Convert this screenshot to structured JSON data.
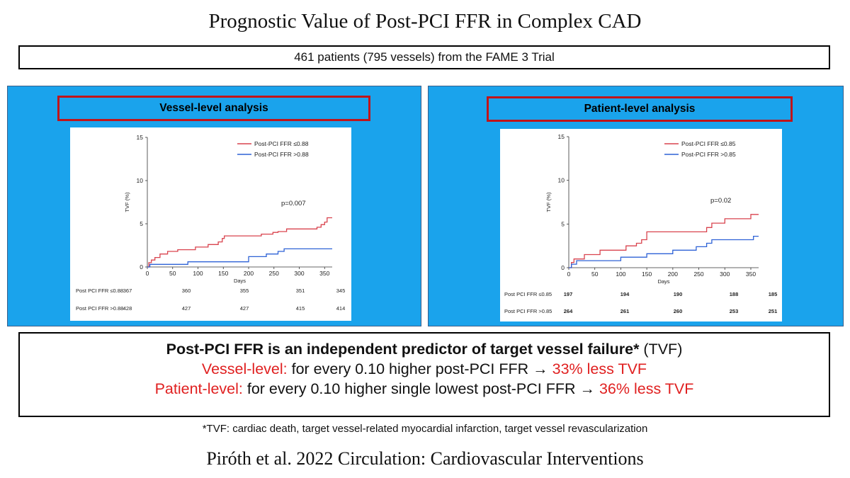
{
  "slide": {
    "title": "Prognostic Value of Post-PCI FFR in Complex CAD",
    "subtitle": "461 patients (795 vessels) from the FAME 3 Trial"
  },
  "panels": [
    {
      "label": "Vessel-level analysis"
    },
    {
      "label": "Patient-level analysis"
    }
  ],
  "summary": {
    "headline_bold": "Post-PCI FFR is an independent predictor of target vessel failure*",
    "headline_rest": " (TVF)",
    "line2_label": "Vessel-level:",
    "line2_mid": " for every 0.10 higher post-PCI FFR → ",
    "line2_result": "33% less TVF",
    "line3_label": "Patient-level:",
    "line3_mid": " for every 0.10 higher single lowest post-PCI FFR → ",
    "line3_result": "36% less TVF"
  },
  "footnote": "*TVF: cardiac death, target vessel-related myocardial infarction, target vessel revascularization",
  "citation": "Piróth et al. 2022 Circulation: Cardiovascular Interventions",
  "colors": {
    "low_ffr": "#d9434e",
    "high_ffr": "#2e62d6",
    "panel_bg": "#1aa3ec",
    "highlight_red": "#e02020"
  },
  "chart_data": [
    {
      "type": "line",
      "step": true,
      "xlabel": "Days",
      "ylabel": "TVF (%)",
      "xlim": [
        0,
        365
      ],
      "ylim": [
        0,
        15
      ],
      "xticks": [
        0,
        50,
        100,
        150,
        200,
        250,
        300,
        350
      ],
      "yticks": [
        0,
        5,
        10,
        15
      ],
      "annotation": "p=0.007",
      "legend_position": "top-right",
      "series": [
        {
          "name": "Post-PCI FFR ≤0.88",
          "color": "#d9434e",
          "x": [
            0,
            3,
            8,
            15,
            25,
            40,
            60,
            95,
            120,
            140,
            148,
            152,
            200,
            225,
            248,
            258,
            270,
            275,
            335,
            343,
            350,
            355,
            365
          ],
          "y": [
            0,
            0.5,
            0.8,
            1.1,
            1.5,
            1.8,
            2.0,
            2.3,
            2.6,
            2.9,
            3.3,
            3.6,
            3.6,
            3.8,
            4.0,
            4.1,
            4.1,
            4.4,
            4.6,
            4.9,
            5.2,
            5.7,
            5.7
          ]
        },
        {
          "name": "Post-PCI FFR >0.88",
          "color": "#2e62d6",
          "x": [
            0,
            5,
            80,
            200,
            235,
            258,
            270,
            365
          ],
          "y": [
            0,
            0.3,
            0.6,
            1.2,
            1.5,
            1.8,
            2.1,
            2.1
          ]
        }
      ],
      "risk_table": {
        "rows": [
          {
            "label": "Post PCI FFR ≤0.88",
            "values": [
              "367",
              "360",
              "355",
              "351",
              "345"
            ]
          },
          {
            "label": "Post PCI FFR >0.88",
            "values": [
              "428",
              "427",
              "427",
              "415",
              "414"
            ]
          }
        ]
      }
    },
    {
      "type": "line",
      "step": true,
      "xlabel": "Days",
      "ylabel": "TVF (%)",
      "xlim": [
        0,
        365
      ],
      "ylim": [
        0,
        15
      ],
      "xticks": [
        0,
        50,
        100,
        150,
        200,
        250,
        300,
        350
      ],
      "yticks": [
        0,
        5,
        10,
        15
      ],
      "annotation": "p=0.02",
      "legend_position": "top-right",
      "series": [
        {
          "name": "Post-PCI FFR ≤0.85",
          "color": "#d9434e",
          "x": [
            0,
            5,
            10,
            30,
            60,
            110,
            130,
            140,
            150,
            265,
            275,
            300,
            350,
            365
          ],
          "y": [
            0,
            0.6,
            1.0,
            1.5,
            2.0,
            2.5,
            2.8,
            3.2,
            4.1,
            4.6,
            5.1,
            5.6,
            6.1,
            6.1
          ]
        },
        {
          "name": "Post-PCI FFR >0.85",
          "color": "#2e62d6",
          "x": [
            0,
            5,
            15,
            100,
            150,
            200,
            245,
            265,
            275,
            355,
            365
          ],
          "y": [
            0,
            0.4,
            0.8,
            1.2,
            1.6,
            2.0,
            2.4,
            2.8,
            3.2,
            3.6,
            3.6
          ]
        }
      ],
      "risk_table": {
        "rows": [
          {
            "label": "Post PCI FFR ≤0.85",
            "values": [
              "197",
              "194",
              "190",
              "188",
              "185"
            ]
          },
          {
            "label": "Post PCI FFR >0.85",
            "values": [
              "264",
              "261",
              "260",
              "253",
              "251"
            ]
          }
        ]
      }
    }
  ]
}
